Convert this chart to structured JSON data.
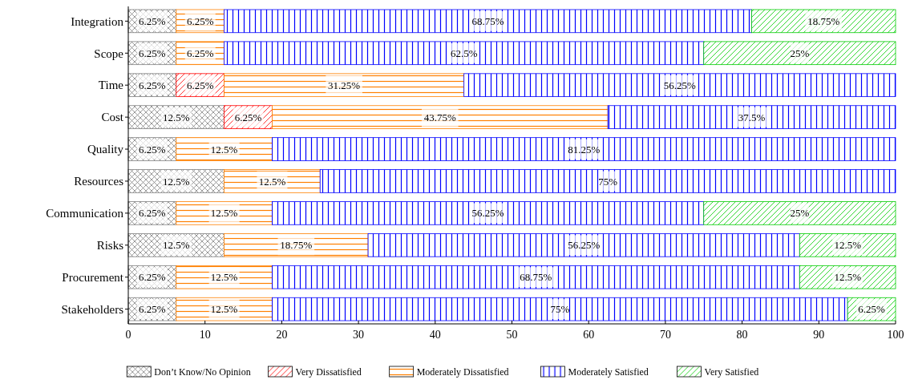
{
  "chart_data": {
    "type": "bar",
    "orientation": "horizontal",
    "stacked": true,
    "categories": [
      "Integration",
      "Scope",
      "Time",
      "Cost",
      "Quality",
      "Resources",
      "Communication",
      "Risks",
      "Procurement",
      "Stakeholders"
    ],
    "xlim": [
      0,
      100
    ],
    "xticks": [
      0,
      10,
      20,
      30,
      40,
      50,
      60,
      70,
      80,
      90,
      100
    ],
    "legend": "bottom",
    "grid": false,
    "series": [
      {
        "name": "Don’t Know/No Opinion",
        "color": "#808080",
        "values": [
          6.25,
          6.25,
          6.25,
          12.5,
          6.25,
          12.5,
          6.25,
          12.5,
          6.25,
          6.25
        ],
        "value_labels": [
          "6.25%",
          "6.25%",
          "6.25%",
          "12.5%",
          "6.25%",
          "12.5%",
          "6.25%",
          "12.5%",
          "6.25%",
          "6.25%"
        ]
      },
      {
        "name": "Very Dissatisfied",
        "color": "#ff0000",
        "values": [
          0,
          0,
          6.25,
          6.25,
          0,
          0,
          0,
          0,
          0,
          0
        ],
        "value_labels": [
          null,
          null,
          "6.25%",
          "6.25%",
          null,
          null,
          null,
          null,
          null,
          null
        ]
      },
      {
        "name": "Moderately Dissatisfied",
        "color": "#ff8000",
        "values": [
          6.25,
          6.25,
          31.25,
          43.75,
          12.5,
          12.5,
          12.5,
          18.75,
          12.5,
          12.5
        ],
        "value_labels": [
          "6.25%",
          "6.25%",
          "31.25%",
          "43.75%",
          "12.5%",
          "12.5%",
          "12.5%",
          "18.75%",
          "12.5%",
          "12.5%"
        ]
      },
      {
        "name": "Moderately Satisfied",
        "color": "#0000ff",
        "values": [
          68.75,
          62.5,
          56.25,
          37.5,
          81.25,
          75,
          56.25,
          56.25,
          68.75,
          75
        ],
        "value_labels": [
          "68.75%",
          "62.5%",
          "56.25%",
          "37.5%",
          "81.25%",
          "75%",
          "56.25%",
          "56.25%",
          "68.75%",
          "75%"
        ]
      },
      {
        "name": "Very Satisfied",
        "color": "#00cc00",
        "values": [
          18.75,
          25,
          0,
          0,
          0,
          0,
          25,
          12.5,
          12.5,
          6.25
        ],
        "value_labels": [
          "18.75%",
          "25%",
          null,
          null,
          null,
          null,
          "25%",
          "12.5%",
          "12.5%",
          "6.25%"
        ]
      }
    ]
  }
}
